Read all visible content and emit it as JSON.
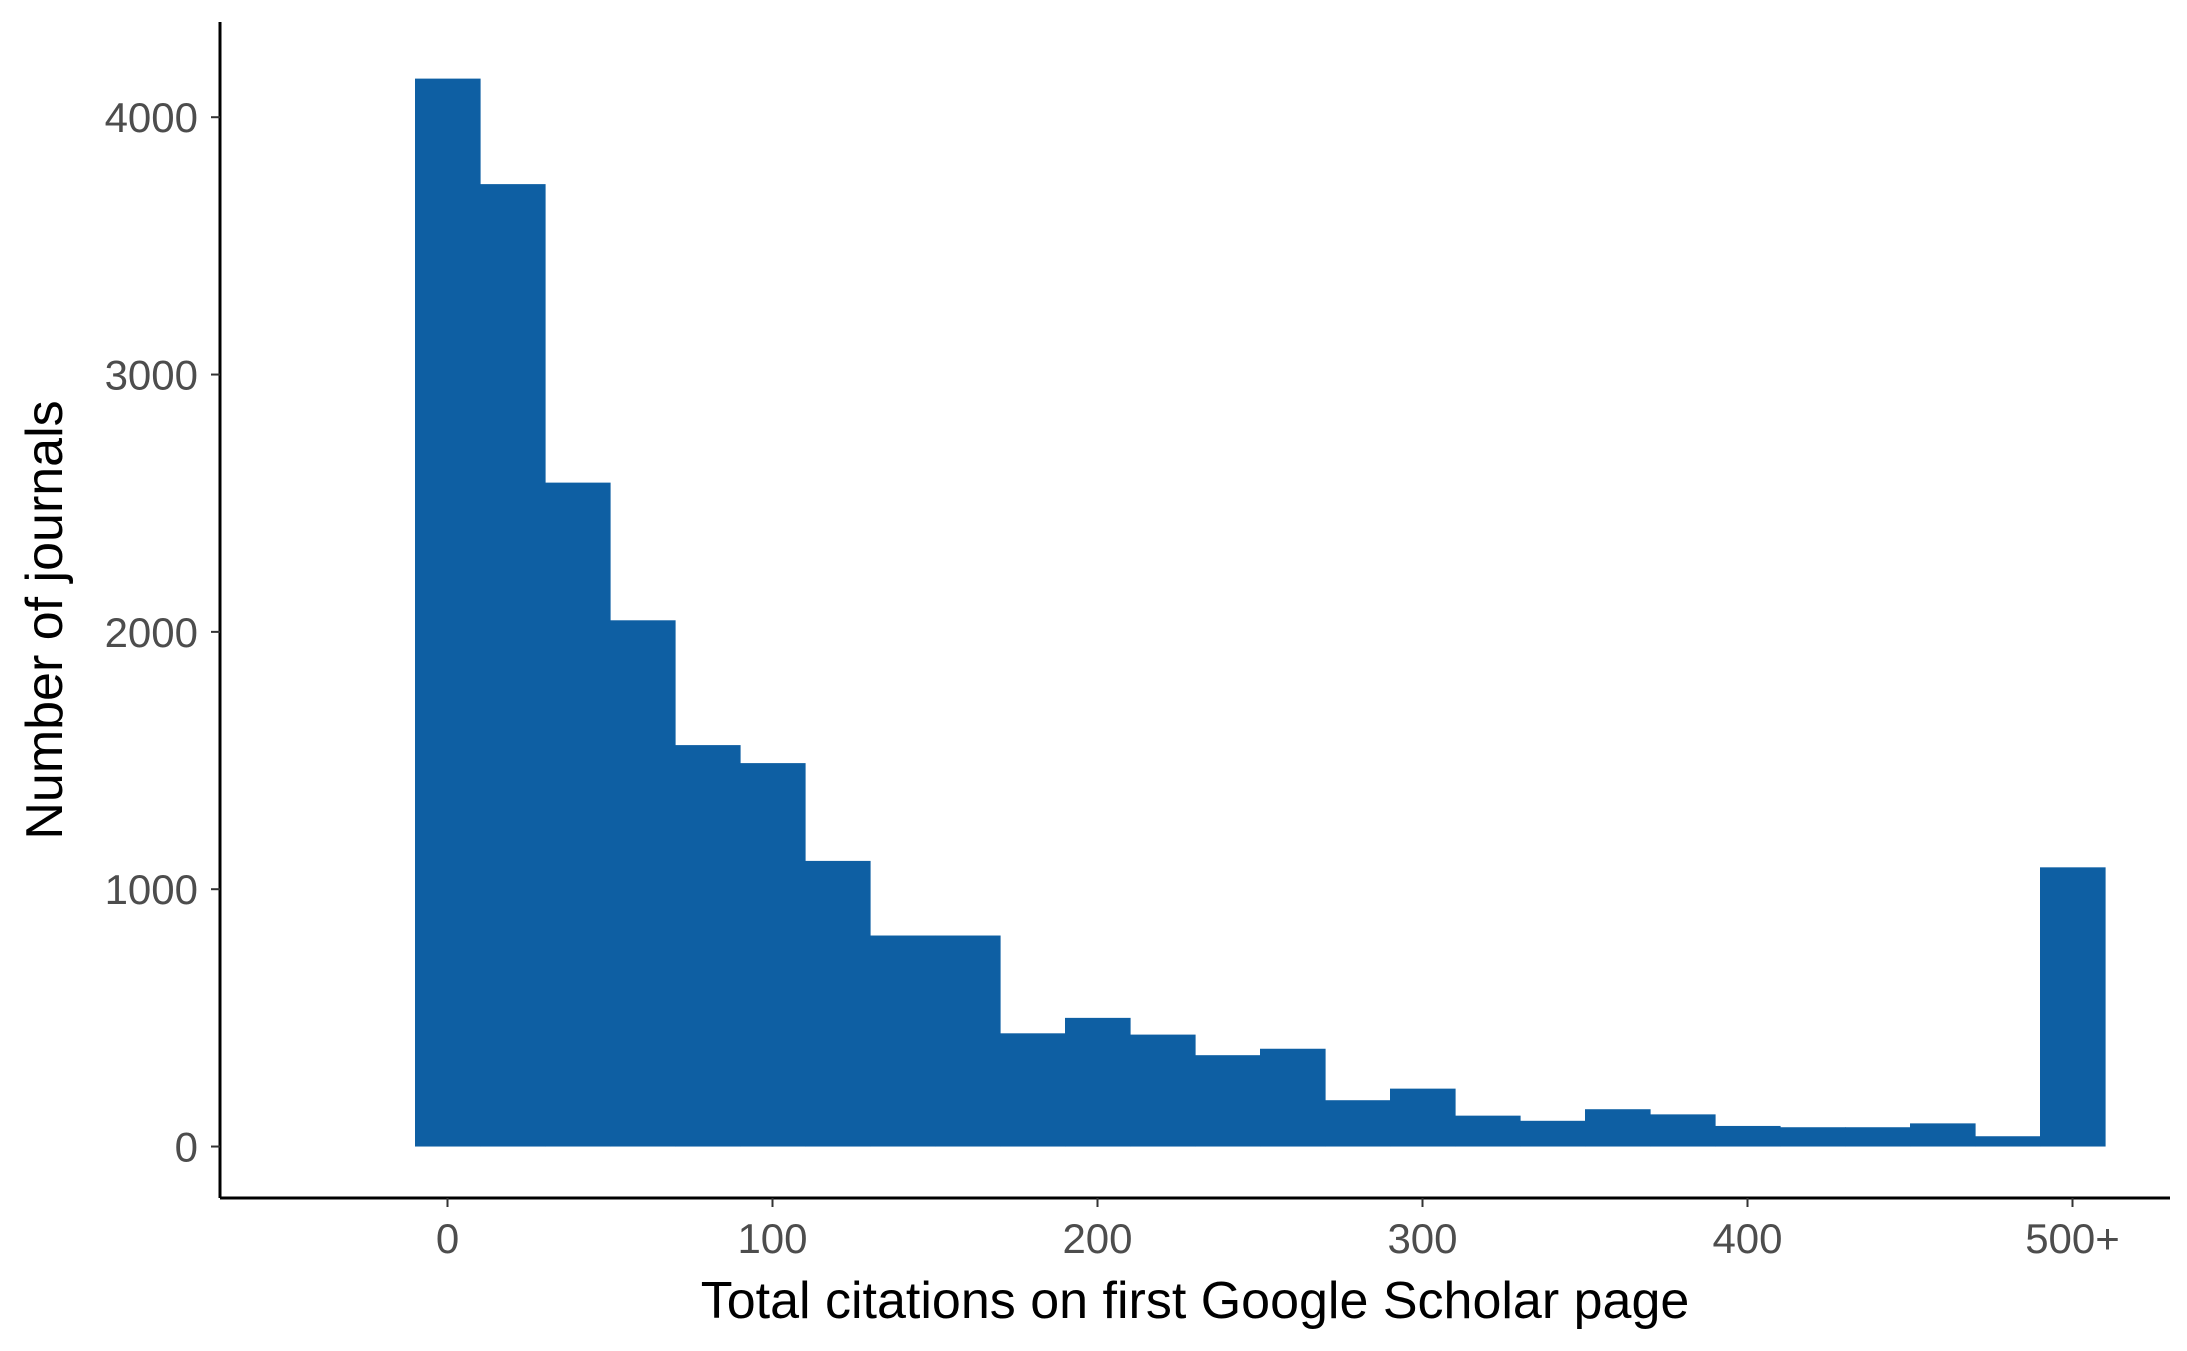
{
  "chart_data": {
    "type": "bar",
    "xlabel": "Total citations on first Google Scholar page",
    "ylabel": "Number of journals",
    "bin_width": 20,
    "bin_centers": [
      0,
      20,
      40,
      60,
      80,
      100,
      120,
      140,
      160,
      180,
      200,
      220,
      240,
      260,
      280,
      300,
      320,
      340,
      360,
      380,
      400,
      420,
      440,
      460,
      480,
      500
    ],
    "values": [
      4150,
      3740,
      2580,
      2045,
      1560,
      1490,
      1110,
      820,
      820,
      440,
      500,
      435,
      355,
      380,
      180,
      225,
      120,
      100,
      145,
      125,
      80,
      75,
      75,
      90,
      40,
      1085
    ],
    "xlim": [
      -70,
      530
    ],
    "ylim": [
      -200,
      4370
    ],
    "x_ticks": [
      {
        "value": 0,
        "label": "0"
      },
      {
        "value": 100,
        "label": "100"
      },
      {
        "value": 200,
        "label": "200"
      },
      {
        "value": 300,
        "label": "300"
      },
      {
        "value": 400,
        "label": "400"
      },
      {
        "value": 500,
        "label": "500+"
      }
    ],
    "y_ticks": [
      {
        "value": 0,
        "label": "0"
      },
      {
        "value": 1000,
        "label": "1000"
      },
      {
        "value": 2000,
        "label": "2000"
      },
      {
        "value": 3000,
        "label": "3000"
      },
      {
        "value": 4000,
        "label": "4000"
      }
    ],
    "grid": false,
    "legend": "none",
    "bar_color": "#0e5fa3"
  }
}
